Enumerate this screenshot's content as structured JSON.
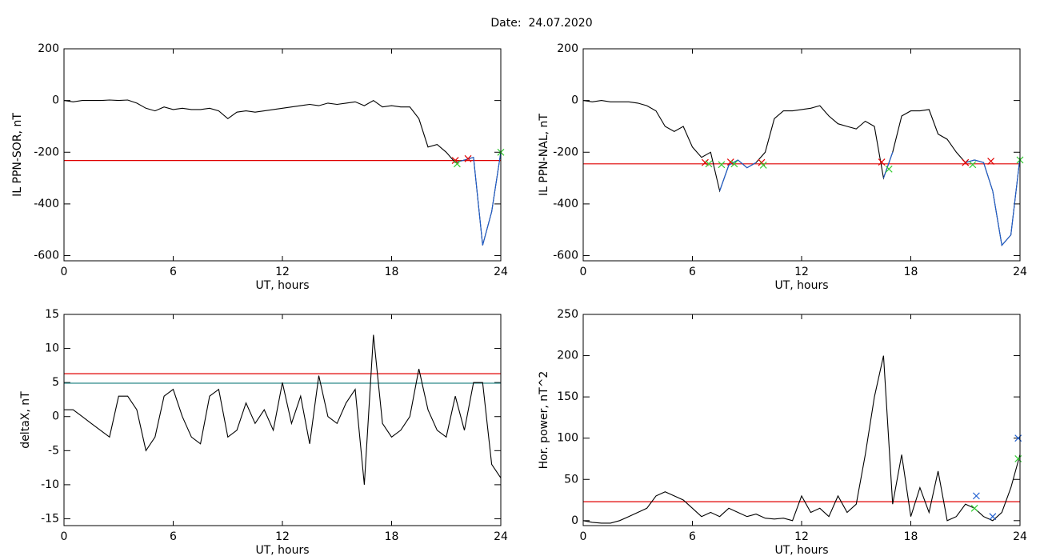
{
  "title": "Date:  24.07.2020",
  "chart_data": [
    {
      "type": "line",
      "xlabel": "UT, hours",
      "ylabel": "IL PPN-SOR, nT",
      "xlim": [
        0,
        24
      ],
      "ylim": [
        -620,
        200
      ],
      "xticks": [
        0,
        6,
        12,
        18,
        24
      ],
      "yticks": [
        -600,
        -400,
        -200,
        0,
        200
      ],
      "x": [
        0,
        0.5,
        1,
        1.5,
        2,
        2.5,
        3,
        3.5,
        4,
        4.5,
        5,
        5.5,
        6,
        6.5,
        7,
        7.5,
        8,
        8.5,
        9,
        9.5,
        10,
        10.5,
        11,
        11.5,
        12,
        12.5,
        13,
        13.5,
        14,
        14.5,
        15,
        15.5,
        16,
        16.5,
        17,
        17.5,
        18,
        18.5,
        19,
        19.5,
        20,
        20.5,
        21,
        21.5,
        22,
        22.5,
        23,
        23.5,
        24
      ],
      "series": [
        {
          "color": "#000000",
          "values": [
            0,
            -5,
            0,
            0,
            0,
            2,
            0,
            2,
            -10,
            -30,
            -40,
            -25,
            -35,
            -30,
            -35,
            -35,
            -30,
            -40,
            -70,
            -45,
            -40,
            -45,
            -40,
            -35,
            -30,
            -25,
            -20,
            -15,
            -20,
            -10,
            -15,
            -10,
            -5,
            -20,
            0,
            -25,
            -20,
            -25,
            -25,
            -70,
            -180,
            -170,
            -200,
            -240,
            -230,
            -220,
            -560,
            -430,
            -200
          ]
        },
        {
          "color": "#1f5fd0",
          "values": [
            null,
            null,
            null,
            null,
            null,
            null,
            null,
            null,
            null,
            null,
            null,
            null,
            null,
            null,
            null,
            null,
            null,
            null,
            null,
            null,
            null,
            null,
            null,
            null,
            null,
            null,
            null,
            null,
            null,
            null,
            null,
            null,
            null,
            null,
            null,
            null,
            null,
            null,
            null,
            null,
            null,
            null,
            null,
            -240,
            -230,
            -220,
            -560,
            -430,
            -200
          ]
        }
      ],
      "hlines": [
        {
          "value": -232,
          "color": "#e00000"
        }
      ],
      "markers": [
        {
          "color": "#e00000",
          "x": [
            21.5,
            22.2
          ],
          "values": [
            -232,
            -225
          ]
        },
        {
          "color": "#33cc33",
          "x": [
            21.6,
            24
          ],
          "values": [
            -245,
            -200
          ]
        }
      ]
    },
    {
      "type": "line",
      "xlabel": "UT, hours",
      "ylabel": "IL PPN-NAL, nT",
      "xlim": [
        0,
        24
      ],
      "ylim": [
        -620,
        200
      ],
      "xticks": [
        0,
        6,
        12,
        18,
        24
      ],
      "yticks": [
        -600,
        -400,
        -200,
        0,
        200
      ],
      "x": [
        0,
        0.5,
        1,
        1.5,
        2,
        2.5,
        3,
        3.5,
        4,
        4.5,
        5,
        5.5,
        6,
        6.5,
        7,
        7.5,
        8,
        8.5,
        9,
        9.5,
        10,
        10.5,
        11,
        11.5,
        12,
        12.5,
        13,
        13.5,
        14,
        14.5,
        15,
        15.5,
        16,
        16.5,
        17,
        17.5,
        18,
        18.5,
        19,
        19.5,
        20,
        20.5,
        21,
        21.5,
        22,
        22.5,
        23,
        23.5,
        24
      ],
      "series": [
        {
          "color": "#000000",
          "values": [
            0,
            -5,
            0,
            -5,
            -5,
            -5,
            -10,
            -20,
            -40,
            -100,
            -120,
            -100,
            -180,
            -220,
            -200,
            -350,
            -250,
            -230,
            -260,
            -240,
            -200,
            -70,
            -40,
            -40,
            -35,
            -30,
            -20,
            -60,
            -90,
            -100,
            -110,
            -80,
            -100,
            -300,
            -200,
            -60,
            -40,
            -40,
            -35,
            -130,
            -150,
            -200,
            -240,
            -230,
            -240,
            -350,
            -560,
            -520,
            -220
          ]
        },
        {
          "color": "#1f5fd0",
          "values": [
            null,
            null,
            null,
            null,
            null,
            null,
            null,
            null,
            null,
            null,
            null,
            null,
            null,
            null,
            null,
            -350,
            -250,
            -230,
            -260,
            -240,
            null,
            null,
            null,
            null,
            null,
            null,
            null,
            null,
            null,
            null,
            null,
            null,
            null,
            -300,
            -200,
            null,
            null,
            null,
            null,
            null,
            null,
            null,
            -240,
            -230,
            -240,
            -350,
            -560,
            -520,
            -220
          ]
        }
      ],
      "hlines": [
        {
          "value": -245,
          "color": "#e00000"
        }
      ],
      "markers": [
        {
          "color": "#e00000",
          "x": [
            6.7,
            8.1,
            9.8,
            16.4,
            21.0,
            22.4
          ],
          "values": [
            -240,
            -238,
            -240,
            -238,
            -240,
            -235
          ]
        },
        {
          "color": "#33cc33",
          "x": [
            6.9,
            7.6,
            8.3,
            9.9,
            16.8,
            21.4,
            24
          ],
          "values": [
            -245,
            -248,
            -245,
            -250,
            -265,
            -248,
            -230
          ]
        }
      ]
    },
    {
      "type": "line",
      "xlabel": "UT, hours",
      "ylabel": "deltaX, nT",
      "xlim": [
        0,
        24
      ],
      "ylim": [
        -16,
        15
      ],
      "xticks": [
        0,
        6,
        12,
        18,
        24
      ],
      "yticks": [
        -15,
        -10,
        -5,
        0,
        5,
        10,
        15
      ],
      "x": [
        0,
        0.5,
        1,
        1.5,
        2,
        2.5,
        3,
        3.5,
        4,
        4.5,
        5,
        5.5,
        6,
        6.5,
        7,
        7.5,
        8,
        8.5,
        9,
        9.5,
        10,
        10.5,
        11,
        11.5,
        12,
        12.5,
        13,
        13.5,
        14,
        14.5,
        15,
        15.5,
        16,
        16.5,
        17,
        17.5,
        18,
        18.5,
        19,
        19.5,
        20,
        20.5,
        21,
        21.5,
        22,
        22.5,
        23,
        23.5,
        24
      ],
      "series": [
        {
          "color": "#000000",
          "values": [
            1,
            1,
            0,
            -1,
            -2,
            -3,
            3,
            3,
            1,
            -5,
            -3,
            3,
            4,
            0,
            -3,
            -4,
            3,
            4,
            -3,
            -2,
            2,
            -1,
            1,
            -2,
            5,
            -1,
            3,
            -4,
            6,
            0,
            -1,
            2,
            4,
            -10,
            12,
            -1,
            -3,
            -2,
            0,
            7,
            1,
            -2,
            -3,
            3,
            -2,
            5,
            5,
            -7,
            -9
          ]
        }
      ],
      "hlines": [
        {
          "value": 6.3,
          "color": "#e00000"
        },
        {
          "value": 4.9,
          "color": "#2e8b8b"
        }
      ],
      "markers": []
    },
    {
      "type": "line",
      "xlabel": "UT, hours",
      "ylabel": "Hor. power, nT^2",
      "xlim": [
        0,
        24
      ],
      "ylim": [
        -6,
        250
      ],
      "xticks": [
        0,
        6,
        12,
        18,
        24
      ],
      "yticks": [
        0,
        50,
        100,
        150,
        200,
        250
      ],
      "x": [
        0,
        0.5,
        1,
        1.5,
        2,
        2.5,
        3,
        3.5,
        4,
        4.5,
        5,
        5.5,
        6,
        6.5,
        7,
        7.5,
        8,
        8.5,
        9,
        9.5,
        10,
        10.5,
        11,
        11.5,
        12,
        12.5,
        13,
        13.5,
        14,
        14.5,
        15,
        15.5,
        16,
        16.5,
        17,
        17.5,
        18,
        18.5,
        19,
        19.5,
        20,
        20.5,
        21,
        21.5,
        22,
        22.5,
        23,
        23.5,
        24
      ],
      "series": [
        {
          "color": "#000000",
          "values": [
            0,
            -2,
            -3,
            -3,
            0,
            5,
            10,
            15,
            30,
            35,
            30,
            25,
            15,
            5,
            10,
            5,
            15,
            10,
            5,
            8,
            3,
            2,
            3,
            0,
            30,
            10,
            15,
            5,
            30,
            10,
            20,
            80,
            150,
            200,
            20,
            80,
            5,
            40,
            10,
            60,
            0,
            5,
            20,
            15,
            5,
            0,
            10,
            40,
            80
          ]
        }
      ],
      "hlines": [
        {
          "value": 23,
          "color": "#e00000"
        }
      ],
      "markers": [
        {
          "color": "#1f5fd0",
          "x": [
            21.6,
            22.5,
            23.9
          ],
          "values": [
            30,
            5,
            100
          ]
        },
        {
          "color": "#33cc33",
          "x": [
            21.5,
            23.9
          ],
          "values": [
            15,
            75
          ]
        }
      ]
    }
  ]
}
